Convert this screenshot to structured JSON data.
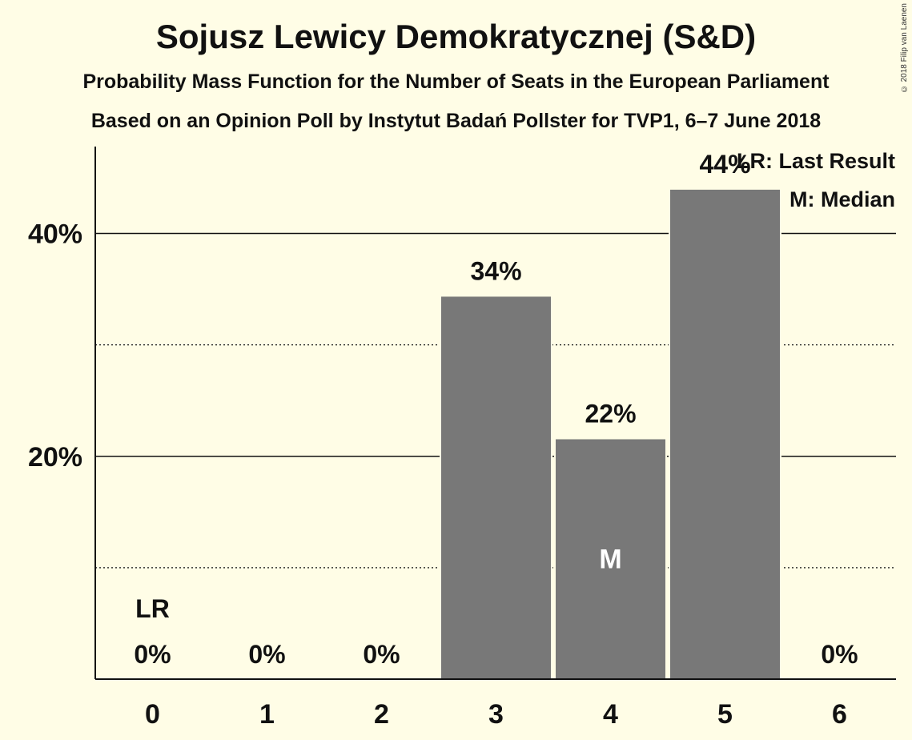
{
  "title": "Sojusz Lewicy Demokratycznej (S&D)",
  "subtitle": "Probability Mass Function for the Number of Seats in the European Parliament",
  "subtitle2": "Based on an Opinion Poll by Instytut Badań Pollster for TVP1, 6–7 June 2018",
  "copyright": "© 2018 Filip van Laenen",
  "legend": {
    "last_result": "LR: Last Result",
    "median": "M: Median"
  },
  "colors": {
    "background": "#fffde6",
    "bar": "#787878",
    "text": "#111111"
  },
  "chart_data": {
    "type": "bar",
    "categories": [
      "0",
      "1",
      "2",
      "3",
      "4",
      "5",
      "6"
    ],
    "values": [
      0,
      0,
      0,
      34.4,
      21.6,
      44.0,
      0
    ],
    "data_labels": [
      "0%",
      "0%",
      "0%",
      "34%",
      "22%",
      "44%",
      "0%"
    ],
    "ylim": [
      0,
      47.8
    ],
    "yticks_major": [
      20,
      40
    ],
    "yticks_minor": [
      10,
      30
    ],
    "ytick_labels": [
      "20%",
      "40%"
    ],
    "last_result_category": "0",
    "last_result_label": "LR",
    "median_category": "4",
    "median_label": "M",
    "grid": true
  }
}
